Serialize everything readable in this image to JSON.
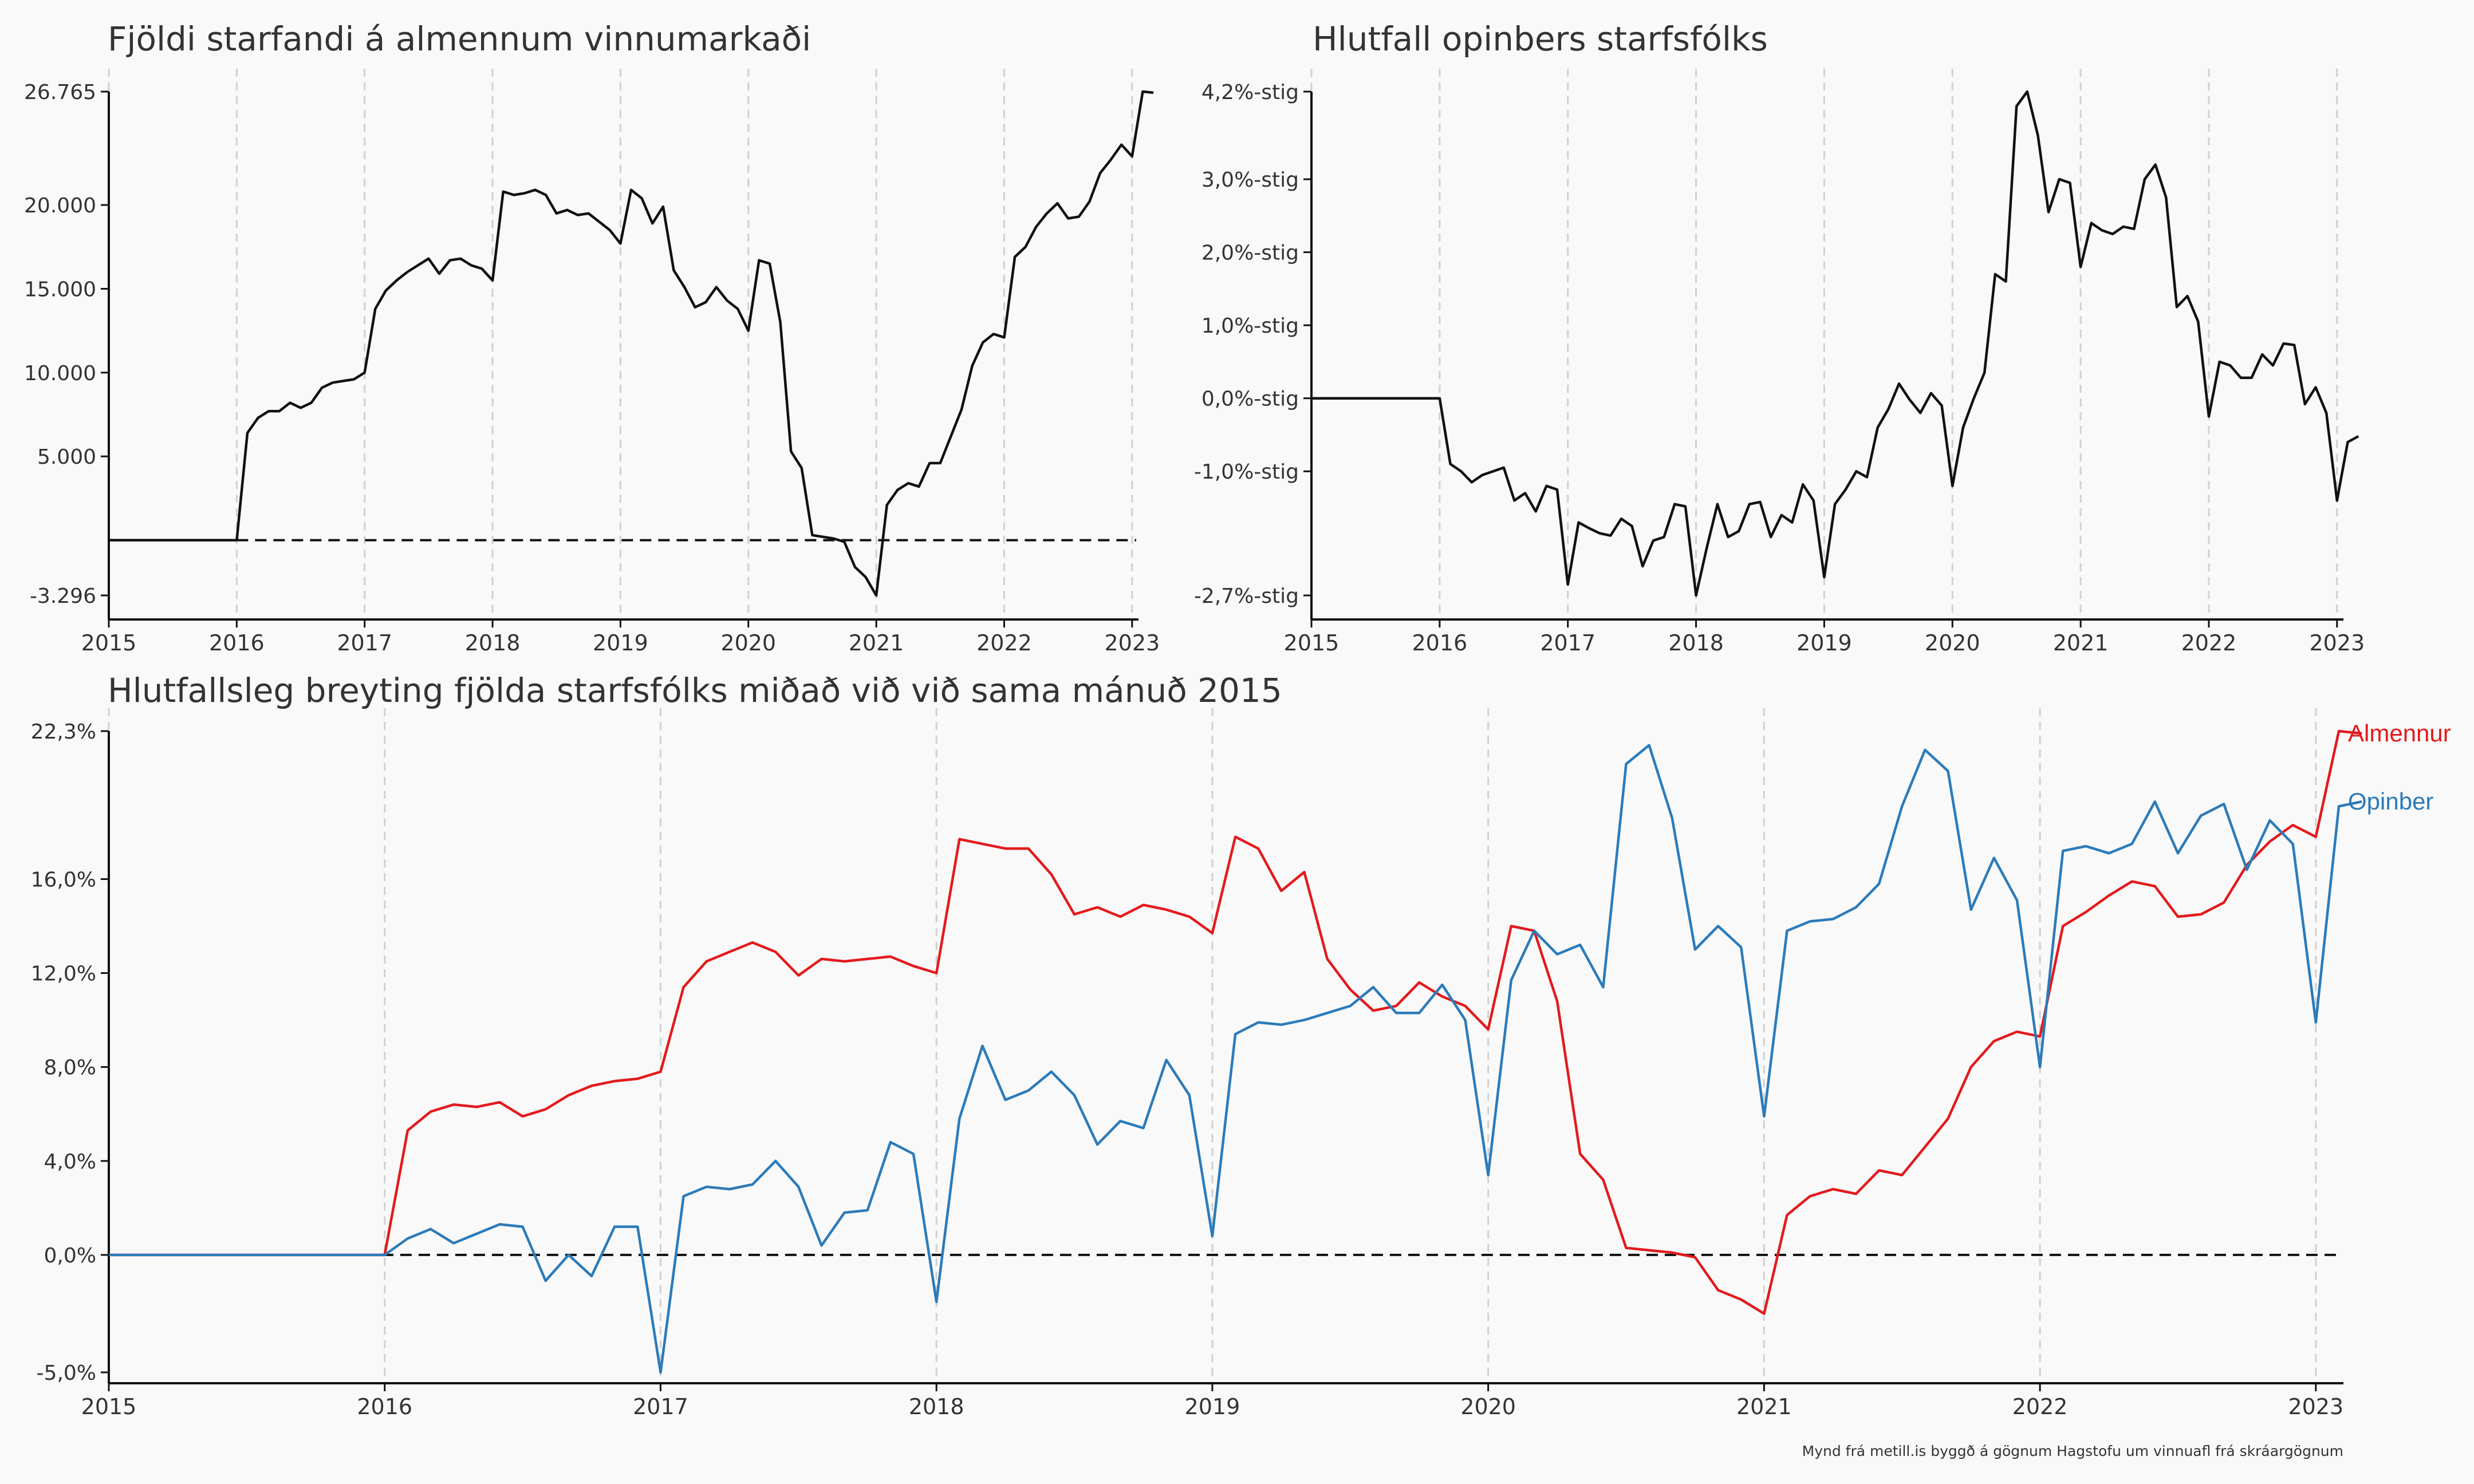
{
  "caption": "Mynd frá metill.is byggð á gögnum Hagstofu um vinnuafl frá skráargögnum",
  "colors": {
    "almennur": "#e31a1c",
    "opinber": "#2b7bba",
    "line": "#111111",
    "grid": "#d0d0d0",
    "background": "#f9f9f9"
  },
  "chart_data": [
    {
      "type": "line",
      "title": "Fjöldi starfandi á almennum vinnumarkaði",
      "xlim": [
        2015,
        2023.05
      ],
      "ylim": [
        -3296,
        26765
      ],
      "x_ticks": [
        "2015",
        "2016",
        "2017",
        "2018",
        "2019",
        "2020",
        "2021",
        "2022",
        "2023"
      ],
      "y_ticks": [
        -3296,
        5000,
        10000,
        15000,
        20000,
        26765
      ],
      "y_tick_labels": [
        "-3.296",
        "5.000",
        "10.000",
        "15.000",
        "20.000",
        "26.765"
      ],
      "grid": "vertical dashed",
      "reference_line": 0,
      "series": [
        {
          "x_start": 2015.0,
          "x_step": 0.0833333,
          "values": [
            0,
            0,
            0,
            0,
            0,
            0,
            0,
            0,
            0,
            0,
            0,
            0,
            0,
            6400,
            7300,
            7700,
            7700,
            8200,
            7900,
            8200,
            9100,
            9400,
            9500,
            9600,
            10000,
            13800,
            14900,
            15500,
            16000,
            16400,
            16800,
            15900,
            16700,
            16800,
            16400,
            16200,
            15500,
            20800,
            20600,
            20700,
            20900,
            20600,
            19500,
            19700,
            19400,
            19500,
            19000,
            18500,
            17700,
            20900,
            20400,
            18900,
            19900,
            16100,
            15100,
            13900,
            14200,
            15100,
            14300,
            13800,
            12500,
            16700,
            16500,
            13000,
            5300,
            4300,
            300,
            200,
            100,
            -100,
            -1600,
            -2200,
            -3296,
            2100,
            3000,
            3400,
            3200,
            4600,
            4600,
            6200,
            7800,
            10400,
            11800,
            12300,
            12100,
            16900,
            17500,
            18700,
            19500,
            20100,
            19200,
            19300,
            20200,
            21900,
            22700,
            23600,
            22900,
            26765,
            26700
          ]
        }
      ]
    },
    {
      "type": "line",
      "title": "Hlutfall opinbers starfsfólks",
      "xlim": [
        2015,
        2023.05
      ],
      "ylim": [
        -2.7,
        4.2
      ],
      "x_ticks": [
        "2015",
        "2016",
        "2017",
        "2018",
        "2019",
        "2020",
        "2021",
        "2022",
        "2023"
      ],
      "y_ticks": [
        -2.7,
        -1.0,
        0.0,
        1.0,
        2.0,
        3.0,
        4.2
      ],
      "y_tick_labels": [
        "-2,7%-stig",
        "-1,0%-stig",
        "0,0%-stig",
        "1,0%-stig",
        "2,0%-stig",
        "3,0%-stig",
        "4,2%-stig"
      ],
      "grid": "vertical dashed",
      "series": [
        {
          "x_start": 2015.0,
          "x_step": 0.0833333,
          "values": [
            0,
            0,
            0,
            0,
            0,
            0,
            0,
            0,
            0,
            0,
            0,
            0,
            0,
            -0.9,
            -1.0,
            -1.15,
            -1.05,
            -1.0,
            -0.95,
            -1.4,
            -1.3,
            -1.55,
            -1.2,
            -1.25,
            -2.55,
            -1.7,
            -1.78,
            -1.85,
            -1.88,
            -1.65,
            -1.75,
            -2.3,
            -1.95,
            -1.9,
            -1.45,
            -1.48,
            -2.7,
            -2.05,
            -1.45,
            -1.9,
            -1.82,
            -1.45,
            -1.42,
            -1.9,
            -1.6,
            -1.7,
            -1.18,
            -1.4,
            -2.45,
            -1.45,
            -1.25,
            -1.0,
            -1.08,
            -0.4,
            -0.15,
            0.2,
            -0.02,
            -0.2,
            0.07,
            -0.1,
            -1.2,
            -0.4,
            0.0,
            0.35,
            1.7,
            1.6,
            4.0,
            4.2,
            3.6,
            2.55,
            3.0,
            2.95,
            1.8,
            2.4,
            2.3,
            2.25,
            2.35,
            2.32,
            3.0,
            3.2,
            2.75,
            1.25,
            1.4,
            1.05,
            -0.25,
            0.5,
            0.45,
            0.28,
            0.28,
            0.6,
            0.45,
            0.75,
            0.73,
            -0.08,
            0.15,
            -0.2,
            -1.4,
            -0.6,
            -0.52
          ]
        }
      ]
    },
    {
      "type": "line",
      "title": "Hlutfallsleg breyting fjölda starfsfólks miðað við við sama mánuð 2015",
      "xlim": [
        2015,
        2023.1
      ],
      "ylim": [
        -5.0,
        22.3
      ],
      "x_ticks": [
        "2015",
        "2016",
        "2017",
        "2018",
        "2019",
        "2020",
        "2021",
        "2022",
        "2023"
      ],
      "y_ticks": [
        -5.0,
        0.0,
        4.0,
        8.0,
        12.0,
        16.0,
        22.3
      ],
      "y_tick_labels": [
        "-5,0%",
        "0,0%",
        "4,0%",
        "8,0%",
        "12,0%",
        "16,0%",
        "22,3%"
      ],
      "grid": "vertical dashed",
      "reference_line": 0,
      "series": [
        {
          "name": "Almennur",
          "color": "#e31a1c",
          "x_start": 2015.0,
          "x_step": 0.0833333,
          "values": [
            0,
            0,
            0,
            0,
            0,
            0,
            0,
            0,
            0,
            0,
            0,
            0,
            0,
            5.3,
            6.1,
            6.4,
            6.3,
            6.5,
            5.9,
            6.2,
            6.8,
            7.2,
            7.4,
            7.5,
            7.8,
            11.4,
            12.5,
            12.9,
            13.3,
            12.9,
            11.9,
            12.6,
            12.5,
            12.6,
            12.7,
            12.3,
            12.0,
            17.7,
            17.5,
            17.3,
            17.3,
            16.2,
            14.5,
            14.8,
            14.4,
            14.9,
            14.7,
            14.4,
            13.7,
            17.8,
            17.3,
            15.5,
            16.3,
            12.6,
            11.3,
            10.4,
            10.6,
            11.6,
            11.0,
            10.6,
            9.6,
            14.0,
            13.8,
            10.8,
            4.3,
            3.2,
            0.3,
            0.2,
            0.1,
            -0.1,
            -1.5,
            -1.9,
            -2.5,
            1.7,
            2.5,
            2.8,
            2.6,
            3.6,
            3.4,
            4.6,
            5.8,
            8.0,
            9.1,
            9.5,
            9.3,
            14.0,
            14.6,
            15.3,
            15.9,
            15.7,
            14.4,
            14.5,
            15.0,
            16.6,
            17.6,
            18.3,
            17.8,
            22.3,
            22.2
          ]
        },
        {
          "name": "Opinber",
          "color": "#2b7bba",
          "x_start": 2015.0,
          "x_step": 0.0833333,
          "values": [
            0,
            0,
            0,
            0,
            0,
            0,
            0,
            0,
            0,
            0,
            0,
            0,
            0,
            0.7,
            1.1,
            0.5,
            0.9,
            1.3,
            1.2,
            -1.1,
            0.0,
            -0.9,
            1.2,
            1.2,
            -5.0,
            2.5,
            2.9,
            2.8,
            3.0,
            4.0,
            2.9,
            0.4,
            1.8,
            1.9,
            4.8,
            4.3,
            -2.0,
            5.8,
            8.9,
            6.6,
            7.0,
            7.8,
            6.8,
            4.7,
            5.7,
            5.4,
            8.3,
            6.8,
            0.8,
            9.4,
            9.9,
            9.8,
            10.0,
            10.3,
            10.6,
            11.4,
            10.3,
            10.3,
            11.5,
            10.0,
            3.4,
            11.7,
            13.8,
            12.8,
            13.2,
            11.4,
            20.9,
            21.7,
            18.6,
            13.0,
            14.0,
            13.1,
            5.9,
            13.8,
            14.2,
            14.3,
            14.8,
            15.8,
            19.1,
            21.5,
            20.6,
            14.7,
            16.9,
            15.1,
            8.0,
            17.2,
            17.4,
            17.1,
            17.5,
            19.3,
            17.1,
            18.7,
            19.2,
            16.4,
            18.5,
            17.5,
            9.9,
            19.1,
            19.3
          ]
        }
      ]
    }
  ]
}
